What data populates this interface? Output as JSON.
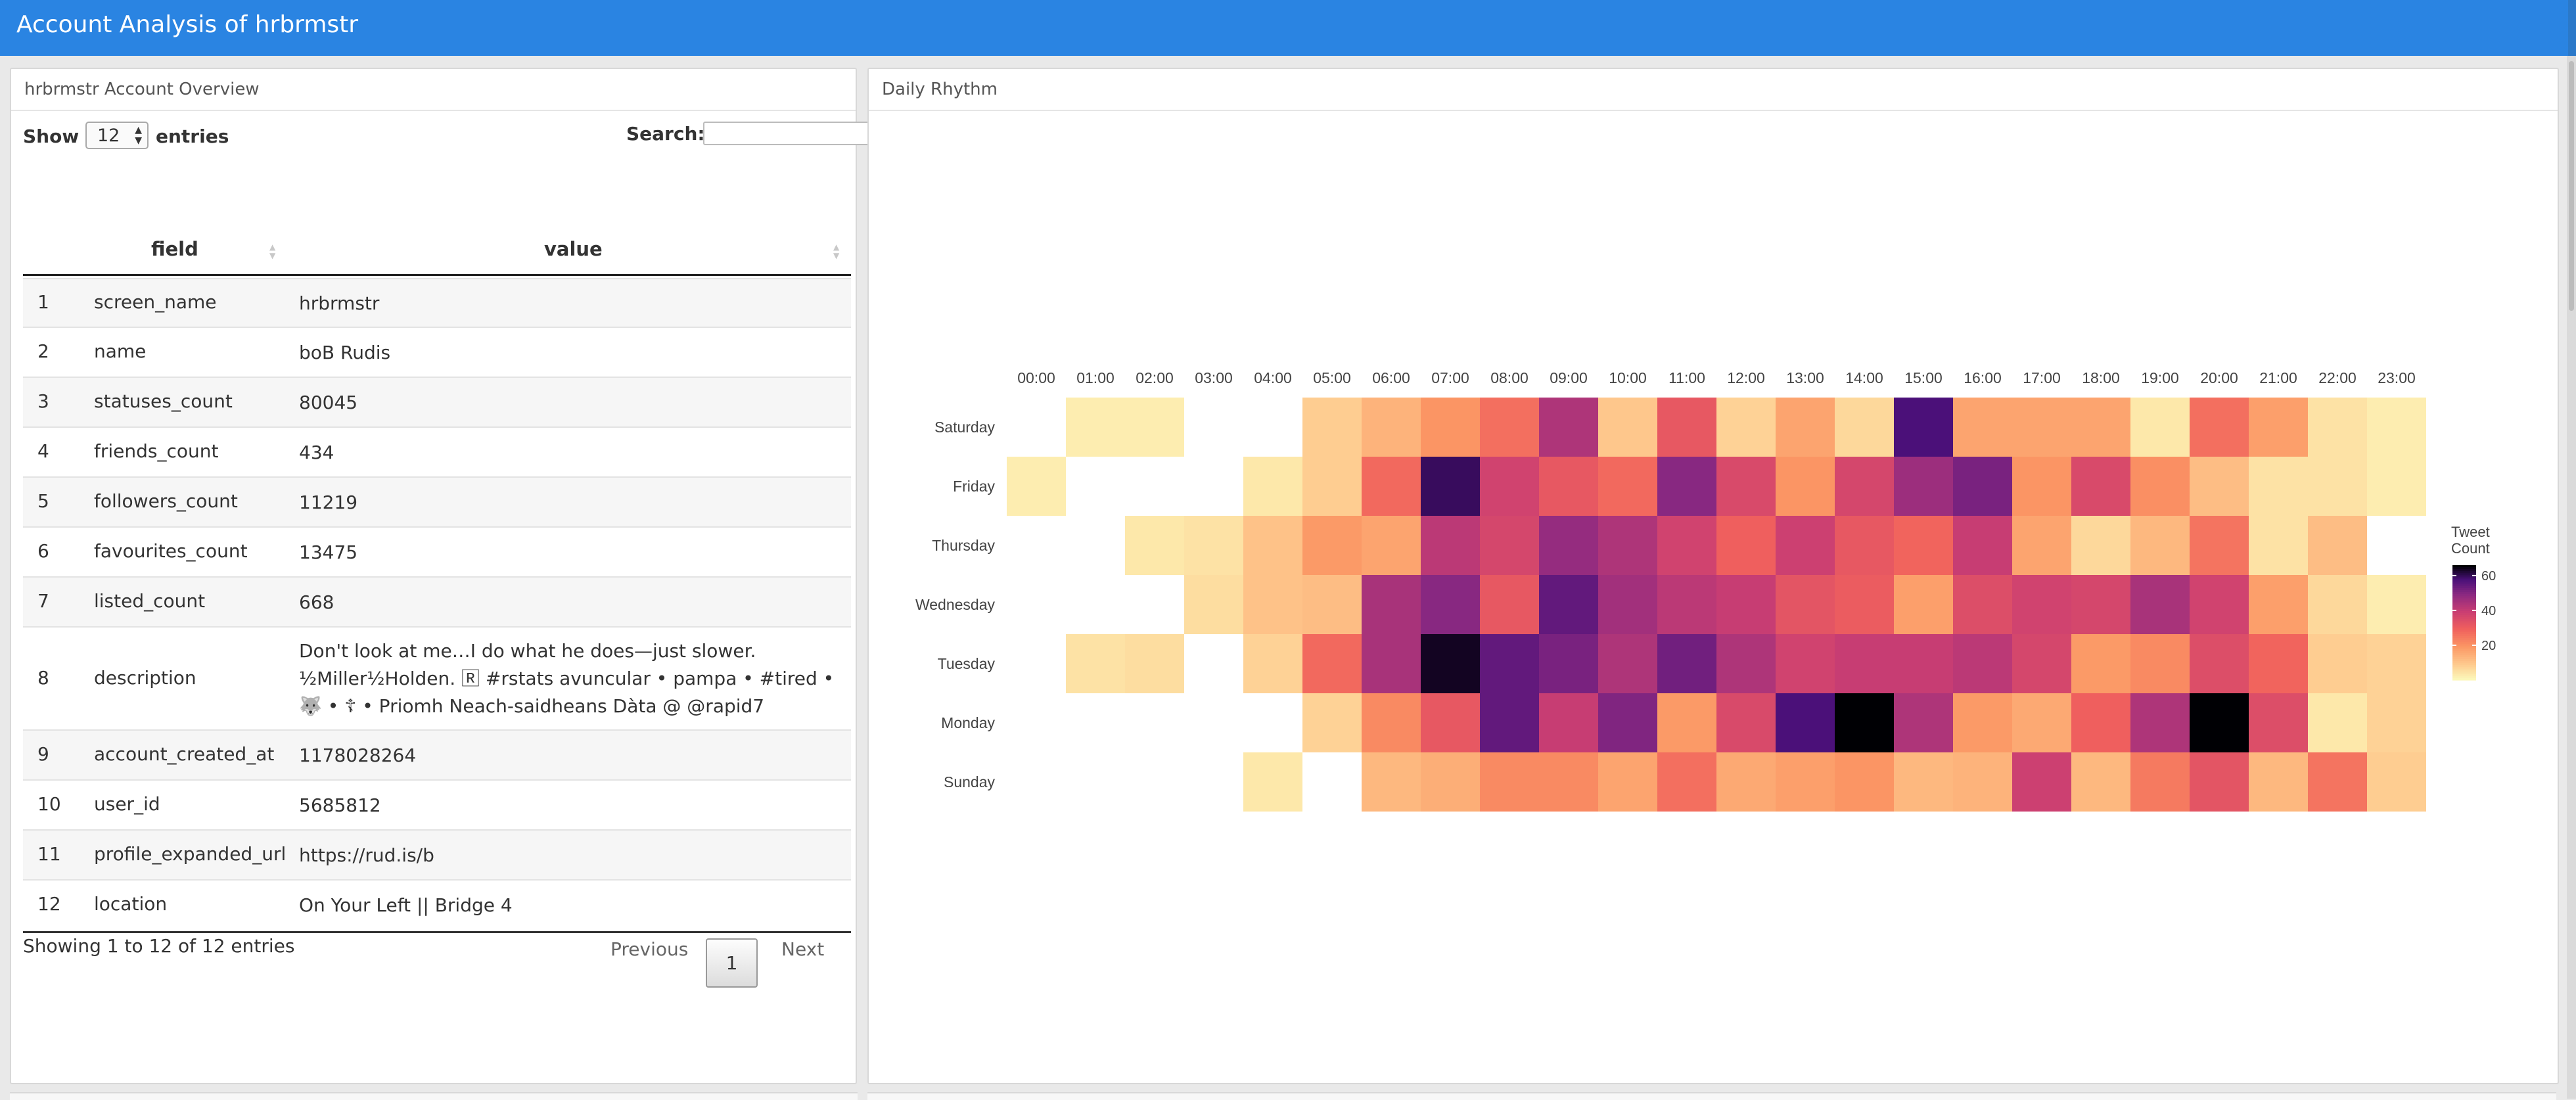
{
  "app": {
    "title": "Account Analysis of hrbrmstr"
  },
  "left_panel": {
    "title": "hrbrmstr Account Overview",
    "show_label": "Show",
    "entries_value": "12",
    "entries_label": "entries",
    "search_label": "Search:",
    "search_value": "",
    "columns": [
      "field",
      "value"
    ],
    "rows": [
      {
        "index": "1",
        "field": "screen_name",
        "value": "hrbrmstr"
      },
      {
        "index": "2",
        "field": "name",
        "value": "boB Rudis"
      },
      {
        "index": "3",
        "field": "statuses_count",
        "value": "80045"
      },
      {
        "index": "4",
        "field": "friends_count",
        "value": "434"
      },
      {
        "index": "5",
        "field": "followers_count",
        "value": "11219"
      },
      {
        "index": "6",
        "field": "favourites_count",
        "value": "13475"
      },
      {
        "index": "7",
        "field": "listed_count",
        "value": "668"
      },
      {
        "index": "8",
        "field": "description",
        "value": "Don't look at me…I do what he does—just slower. ½Miller½Holden. 🅁 #rstats avuncular • pampa • #tired • 🐺 • ☦ • Priomh Neach-saidheans Dàta @ @rapid7"
      },
      {
        "index": "9",
        "field": "account_created_at",
        "value": "1178028264"
      },
      {
        "index": "10",
        "field": "user_id",
        "value": "5685812"
      },
      {
        "index": "11",
        "field": "profile_expanded_url",
        "value": "https://rud.is/b"
      },
      {
        "index": "12",
        "field": "location",
        "value": "On Your Left || Bridge 4"
      }
    ],
    "info": "Showing 1 to 12 of 12 entries",
    "prev_label": "Previous",
    "page_label": "1",
    "next_label": "Next"
  },
  "right_panel": {
    "title": "Daily Rhythm"
  },
  "chart_data": {
    "type": "heatmap",
    "title": "",
    "x_categories": [
      "00:00",
      "01:00",
      "02:00",
      "03:00",
      "04:00",
      "05:00",
      "06:00",
      "07:00",
      "08:00",
      "09:00",
      "10:00",
      "11:00",
      "12:00",
      "13:00",
      "14:00",
      "15:00",
      "16:00",
      "17:00",
      "18:00",
      "19:00",
      "20:00",
      "21:00",
      "22:00",
      "23:00"
    ],
    "y_categories": [
      "Saturday",
      "Friday",
      "Thursday",
      "Wednesday",
      "Tuesday",
      "Monday",
      "Sunday"
    ],
    "values": [
      [
        null,
        3,
        3,
        null,
        null,
        9,
        14,
        20,
        27,
        44,
        10,
        32,
        8,
        17,
        7,
        58,
        17,
        17,
        17,
        4,
        27,
        18,
        5,
        3
      ],
      [
        3,
        null,
        null,
        null,
        4,
        9,
        28,
        60,
        38,
        32,
        28,
        50,
        36,
        20,
        37,
        47,
        52,
        20,
        36,
        21,
        12,
        5,
        5,
        3
      ],
      [
        null,
        null,
        4,
        5,
        11,
        19,
        17,
        42,
        37,
        48,
        44,
        38,
        30,
        39,
        32,
        29,
        40,
        17,
        7,
        13,
        26,
        5,
        12,
        null
      ],
      [
        null,
        null,
        null,
        6,
        11,
        12,
        45,
        50,
        32,
        55,
        46,
        42,
        40,
        33,
        31,
        18,
        35,
        38,
        37,
        45,
        38,
        18,
        7,
        3
      ],
      [
        null,
        5,
        6,
        null,
        8,
        28,
        45,
        64,
        55,
        52,
        44,
        53,
        44,
        38,
        40,
        40,
        42,
        37,
        19,
        22,
        35,
        29,
        9,
        8
      ],
      [
        null,
        null,
        null,
        null,
        null,
        8,
        22,
        32,
        55,
        40,
        51,
        19,
        36,
        58,
        66,
        44,
        19,
        16,
        30,
        44,
        66,
        35,
        4,
        8
      ],
      [
        null,
        null,
        null,
        null,
        4,
        null,
        13,
        15,
        22,
        22,
        17,
        27,
        16,
        18,
        20,
        13,
        14,
        39,
        13,
        25,
        33,
        13,
        26,
        9
      ]
    ],
    "legend": {
      "title": "Tweet Count",
      "ticks": [
        20,
        40,
        60
      ],
      "range": [
        0,
        66
      ],
      "position": "right"
    },
    "color_scale": "magma-reversed"
  }
}
